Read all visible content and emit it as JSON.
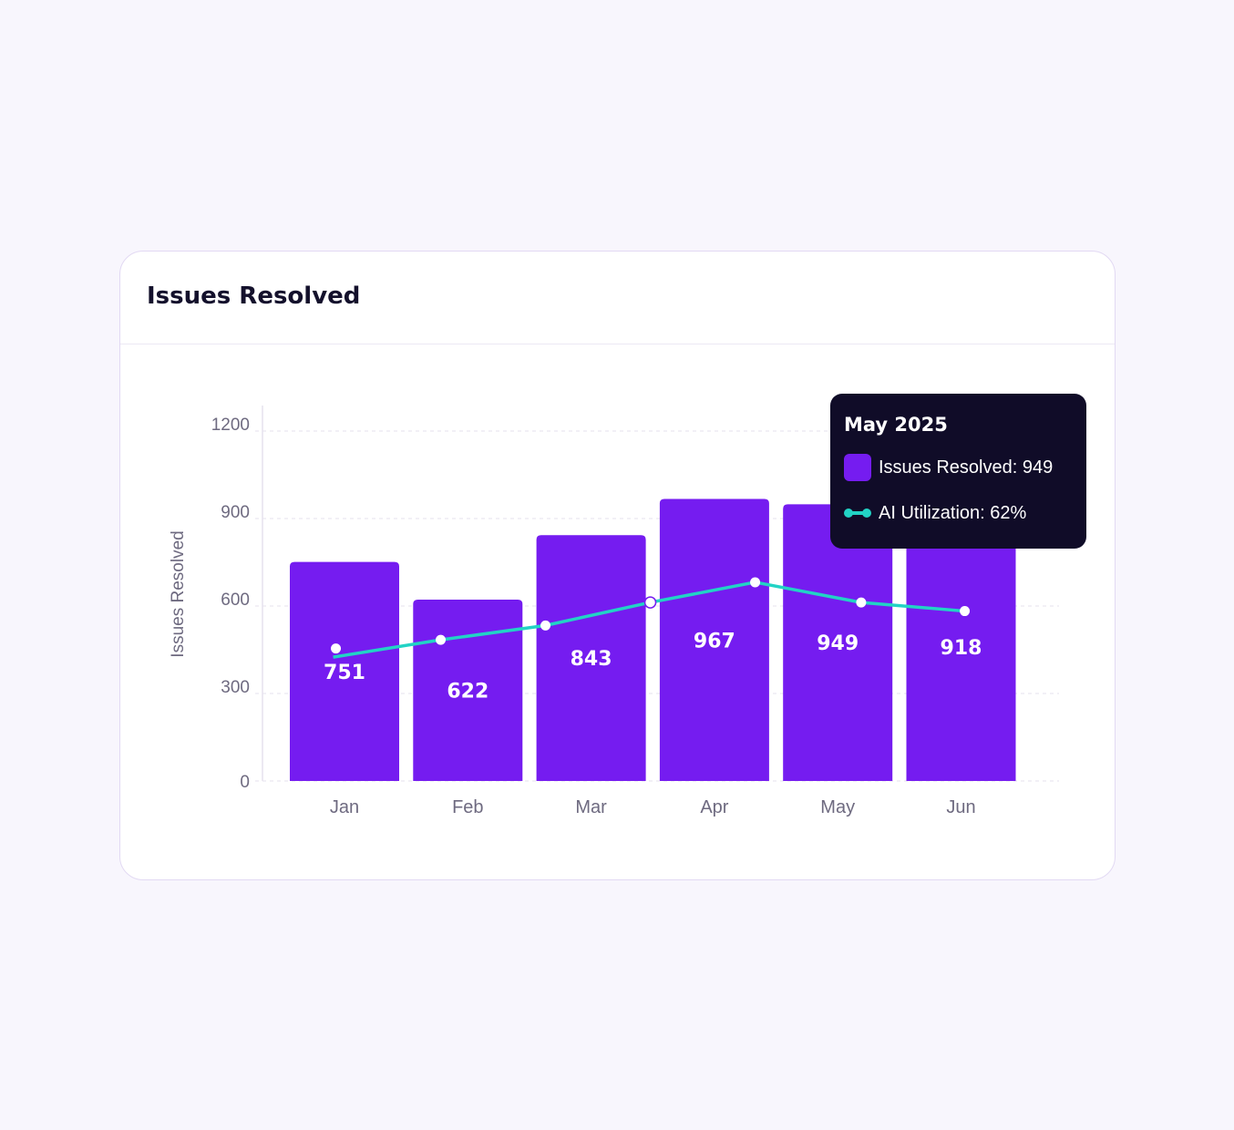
{
  "card": {
    "title": "Issues Resolved"
  },
  "colors": {
    "bar": "#751cf0",
    "line": "#22d3c5",
    "tooltip_bg": "#100c28",
    "grid": "#e6e2ee",
    "axis_text": "#6e6a80"
  },
  "chart_data": {
    "type": "bar",
    "title": "Issues Resolved",
    "xlabel": "",
    "ylabel": "Issues Resolved",
    "ylim": [
      0,
      1200
    ],
    "yticks": [
      "0",
      "300",
      "600",
      "900",
      "1200"
    ],
    "categories": [
      "Jan",
      "Feb",
      "Mar",
      "Apr",
      "May",
      "Jun"
    ],
    "grid": true,
    "series": [
      {
        "name": "Issues Resolved",
        "type": "bar",
        "values": [
          751,
          622,
          843,
          967,
          949,
          918
        ]
      },
      {
        "name": "AI Utilization",
        "type": "line",
        "unit": "%",
        "x": [
          -0.07,
          0.78,
          1.63,
          2.48,
          3.33,
          4.19,
          5.03
        ],
        "values": [
          46,
          49,
          54,
          62,
          69,
          62,
          59
        ]
      }
    ],
    "tooltip": {
      "title": "May 2025",
      "rows": [
        "Issues Resolved: 949",
        "AI Utilization: 62%"
      ]
    }
  }
}
